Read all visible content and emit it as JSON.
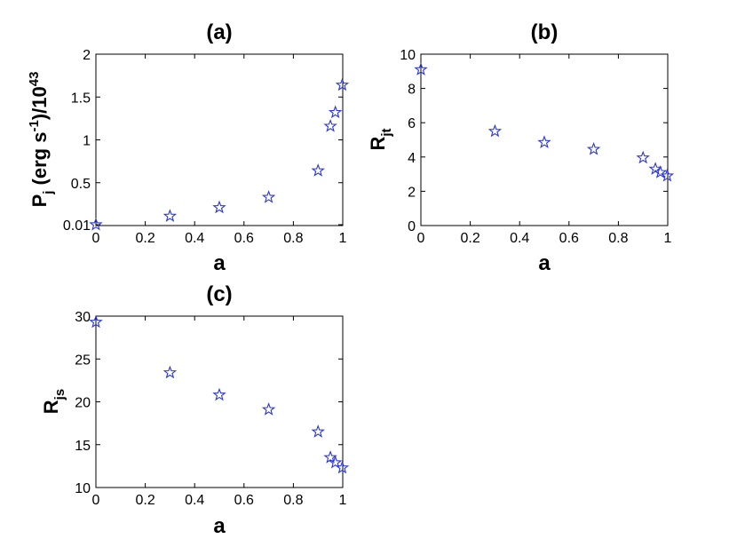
{
  "chart_data": [
    {
      "type": "scatter",
      "title": "(a)",
      "xlabel": "a",
      "ylabel": {
        "main": "P",
        "sub": "j",
        "rest": " (erg s",
        "sup": "-1",
        "rest2": ")/10",
        "sup2": "43"
      },
      "xlim": [
        0,
        1
      ],
      "ylim": [
        0,
        2
      ],
      "xticks": [
        0,
        0.2,
        0.4,
        0.6,
        0.8,
        1
      ],
      "xtick_labels": [
        "0",
        "0.2",
        "0.4",
        "0.6",
        "0.8",
        "1"
      ],
      "yticks": [
        0.01,
        0.5,
        1,
        1.5,
        2
      ],
      "ytick_labels": [
        "0.01",
        "0.5",
        "1",
        "1.5",
        "2"
      ],
      "marker": "star",
      "color": "#2a35d4",
      "x": [
        0,
        0.3,
        0.5,
        0.7,
        0.9,
        0.95,
        0.97,
        0.998
      ],
      "y": [
        0.01,
        0.11,
        0.21,
        0.33,
        0.64,
        1.16,
        1.32,
        1.64
      ]
    },
    {
      "type": "scatter",
      "title": "(b)",
      "xlabel": "a",
      "ylabel": {
        "main": "R",
        "sub": "jt"
      },
      "xlim": [
        0,
        1
      ],
      "ylim": [
        0,
        10
      ],
      "xticks": [
        0,
        0.2,
        0.4,
        0.6,
        0.8,
        1
      ],
      "xtick_labels": [
        "0",
        "0.2",
        "0.4",
        "0.6",
        "0.8",
        "1"
      ],
      "yticks": [
        0,
        2,
        4,
        6,
        8,
        10
      ],
      "ytick_labels": [
        "0",
        "2",
        "4",
        "6",
        "8",
        "10"
      ],
      "marker": "star",
      "color": "#2a35d4",
      "x": [
        0,
        0.3,
        0.5,
        0.7,
        0.9,
        0.95,
        0.97,
        0.998
      ],
      "y": [
        9.1,
        5.5,
        4.85,
        4.45,
        3.95,
        3.3,
        3.1,
        2.9
      ]
    },
    {
      "type": "scatter",
      "title": "(c)",
      "xlabel": "a",
      "ylabel": {
        "main": "R",
        "sub": "js"
      },
      "xlim": [
        0,
        1
      ],
      "ylim": [
        10,
        30
      ],
      "xticks": [
        0,
        0.2,
        0.4,
        0.6,
        0.8,
        1
      ],
      "xtick_labels": [
        "0",
        "0.2",
        "0.4",
        "0.6",
        "0.8",
        "1"
      ],
      "yticks": [
        10,
        15,
        20,
        25,
        30
      ],
      "ytick_labels": [
        "10",
        "15",
        "20",
        "25",
        "30"
      ],
      "marker": "star",
      "color": "#2a35d4",
      "x": [
        0,
        0.3,
        0.5,
        0.7,
        0.9,
        0.95,
        0.97,
        0.998
      ],
      "y": [
        29.3,
        23.4,
        20.8,
        19.1,
        16.5,
        13.5,
        12.9,
        12.3
      ]
    }
  ]
}
